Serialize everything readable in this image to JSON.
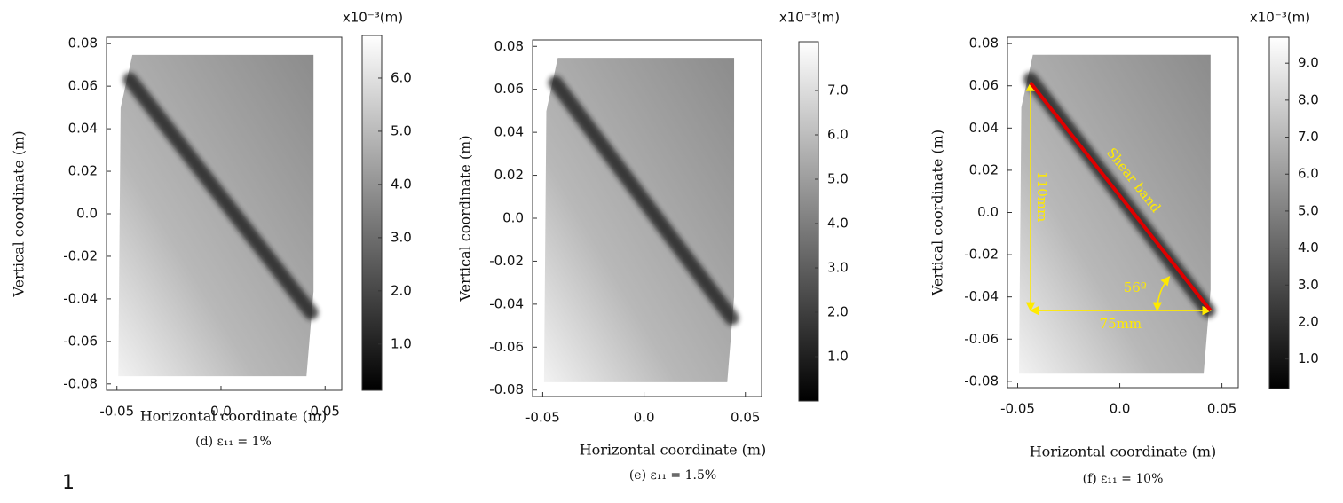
{
  "chart_data": [
    {
      "type": "contour",
      "caption": "(d) ε₁₁ = 1%",
      "xlabel": "Horizontal coordinate (m)",
      "ylabel": "Vertical coordinate (m)",
      "colorbar_label": "x10⁻³(m)",
      "colormap": "gray",
      "xlim": [
        -0.055,
        0.058
      ],
      "ylim": [
        -0.083,
        0.083
      ],
      "xticks": [
        -0.05,
        {
          "value": 0,
          "label": "0.0"
        },
        0.05
      ],
      "yticks": [
        0.08,
        0.06,
        0.04,
        0.02,
        {
          "value": 0,
          "label": "0.0"
        },
        -0.02,
        -0.04,
        -0.06,
        -0.08
      ],
      "clim": [
        0.13,
        6.8
      ],
      "cticks": [
        {
          "value": 1,
          "label": "1.0"
        },
        {
          "value": 2,
          "label": "2.0"
        },
        {
          "value": 3,
          "label": "3.0"
        },
        {
          "value": 4,
          "label": "4.0"
        },
        {
          "value": 5,
          "label": "5.0"
        },
        {
          "value": 6,
          "label": "6.0"
        }
      ]
    },
    {
      "type": "contour",
      "caption": "(e) ε₁₁ = 1.5%",
      "xlabel": "Horizontal coordinate (m)",
      "ylabel": "Vertical coordinate (m)",
      "colorbar_label": "x10⁻³(m)",
      "colormap": "gray",
      "xlim": [
        -0.055,
        0.058
      ],
      "ylim": [
        -0.083,
        0.083
      ],
      "xticks": [
        -0.05,
        {
          "value": 0,
          "label": "0.0"
        },
        0.05
      ],
      "yticks": [
        0.08,
        0.06,
        0.04,
        0.02,
        {
          "value": 0,
          "label": "0.0"
        },
        -0.02,
        -0.04,
        -0.06,
        -0.08
      ],
      "clim": [
        0,
        8.1
      ],
      "cticks": [
        {
          "value": 1,
          "label": "1.0"
        },
        {
          "value": 2,
          "label": "2.0"
        },
        {
          "value": 3,
          "label": "3.0"
        },
        {
          "value": 4,
          "label": "4.0"
        },
        {
          "value": 5,
          "label": "5.0"
        },
        {
          "value": 6,
          "label": "6.0"
        },
        {
          "value": 7,
          "label": "7.0"
        }
      ]
    },
    {
      "type": "contour",
      "caption": "(f) ε₁₁ = 10%",
      "xlabel": "Horizontal coordinate (m)",
      "ylabel": "Vertical coordinate (m)",
      "colorbar_label": "x10⁻³(m)",
      "colormap": "gray",
      "xlim": [
        -0.055,
        0.058
      ],
      "ylim": [
        -0.083,
        0.083
      ],
      "xticks": [
        -0.05,
        {
          "value": 0,
          "label": "0.0"
        },
        0.05
      ],
      "yticks": [
        0.08,
        0.06,
        0.04,
        0.02,
        {
          "value": 0,
          "label": "0.0"
        },
        -0.02,
        -0.04,
        -0.06,
        -0.08
      ],
      "clim": [
        0.2,
        9.7
      ],
      "cticks": [
        {
          "value": 1,
          "label": "1.0"
        },
        {
          "value": 2,
          "label": "2.0"
        },
        {
          "value": 3,
          "label": "3.0"
        },
        {
          "value": 4,
          "label": "4.0"
        },
        {
          "value": 5,
          "label": "5.0"
        },
        {
          "value": 6,
          "label": "6.0"
        },
        {
          "value": 7,
          "label": "7.0"
        },
        {
          "value": 8,
          "label": "8.0"
        },
        {
          "value": 9,
          "label": "9.0"
        }
      ],
      "annotations": [
        "Shear band",
        "110mm",
        "75mm",
        "56º"
      ]
    }
  ],
  "footnote": "1"
}
